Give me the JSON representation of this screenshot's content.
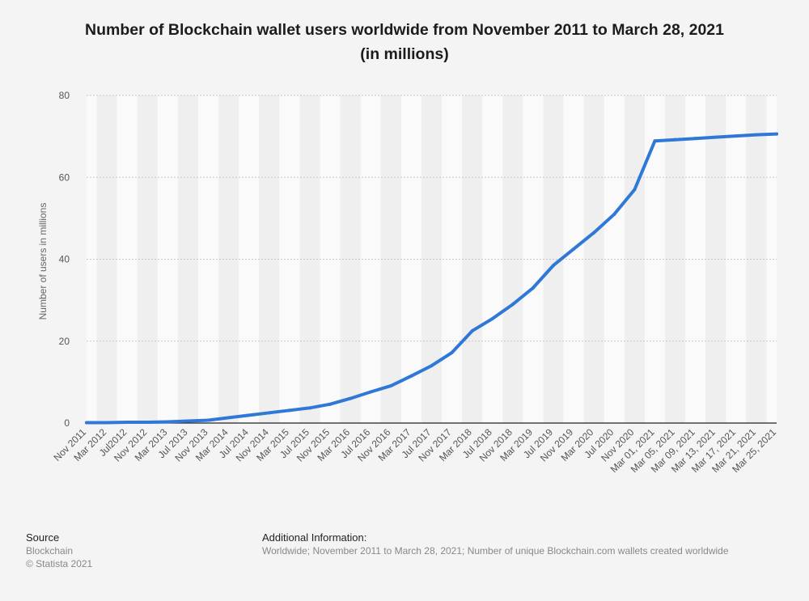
{
  "chart_data": {
    "type": "line",
    "title": "Number of Blockchain wallet users worldwide from November 2011 to March 28, 2021",
    "subtitle": "(in millions)",
    "ylabel": "Number of users in millions",
    "xlabel": "",
    "ylim": [
      0,
      80
    ],
    "yticks": [
      0,
      20,
      40,
      60,
      80
    ],
    "grid": true,
    "x": [
      "Nov 2011",
      "Mar 2012",
      "Jul 2012",
      "Nov 2012",
      "Mar 2013",
      "Jul 2013",
      "Nov 2013",
      "Mar 2014",
      "Jul 2014",
      "Nov 2014",
      "Mar 2015",
      "Jul 2015",
      "Nov 2015",
      "Mar 2016",
      "Jul 2016",
      "Nov 2016",
      "Mar 2017",
      "Jul 2017",
      "Nov 2017",
      "Mar 2018",
      "Jul 2018",
      "Nov 2018",
      "Mar 2019",
      "Jul 2019",
      "Nov 2019",
      "Mar 2020",
      "Jul 2020",
      "Nov 2020",
      "Mar 01, 2021",
      "Mar 05, 2021",
      "Mar 09, 2021",
      "Mar 13, 2021",
      "Mar 17, 2021",
      "Mar 21, 2021",
      "Mar 25, 2021"
    ],
    "x_tick_labels": [
      "Nov 2011",
      "Mar 2012",
      "Jul2012",
      "Nov 2012",
      "Mar 2013",
      "Jul 2013",
      "Nov 2013",
      "Mar 2014",
      "Jul 2014",
      "Nov 2014",
      "Mar 2015",
      "Jul 2015",
      "Nov 2015",
      "Mar 2016",
      "Jul 2016",
      "Nov 2016",
      "Mar 2017",
      "Jul 2017",
      "Nov 2017",
      "Mar 2018",
      "Jul 2018",
      "Nov 2018",
      "Mar 2019",
      "Jul 2019",
      "Nov 2019",
      "Mar 2020",
      "Jul 2020",
      "Nov 2020",
      "Mar 01, 2021",
      "Mar 05, 2021",
      "Mar 09, 2021",
      "Mar 13, 2021",
      "Mar 17, 2021",
      "Mar 21, 2021",
      "Mar 25, 2021"
    ],
    "series": [
      {
        "values": [
          0.1,
          0.1,
          0.2,
          0.2,
          0.3,
          0.5,
          0.7,
          1.3,
          1.9,
          2.5,
          3.1,
          3.7,
          4.6,
          6.0,
          7.6,
          9.1,
          11.5,
          14.0,
          17.2,
          22.5,
          25.5,
          29.0,
          33.0,
          38.5,
          42.5,
          46.5,
          51.0,
          57.0,
          68.9,
          69.2,
          69.5,
          69.8,
          70.1,
          70.4,
          70.6
        ],
        "color": "#2f78d8"
      }
    ]
  },
  "footer": {
    "source_head": "Source",
    "source_line1": "Blockchain",
    "source_line2": "© Statista 2021",
    "info_head": "Additional Information:",
    "info_body": "Worldwide; November 2011 to March 28, 2021; Number of unique Blockchain.com wallets created worldwide"
  }
}
